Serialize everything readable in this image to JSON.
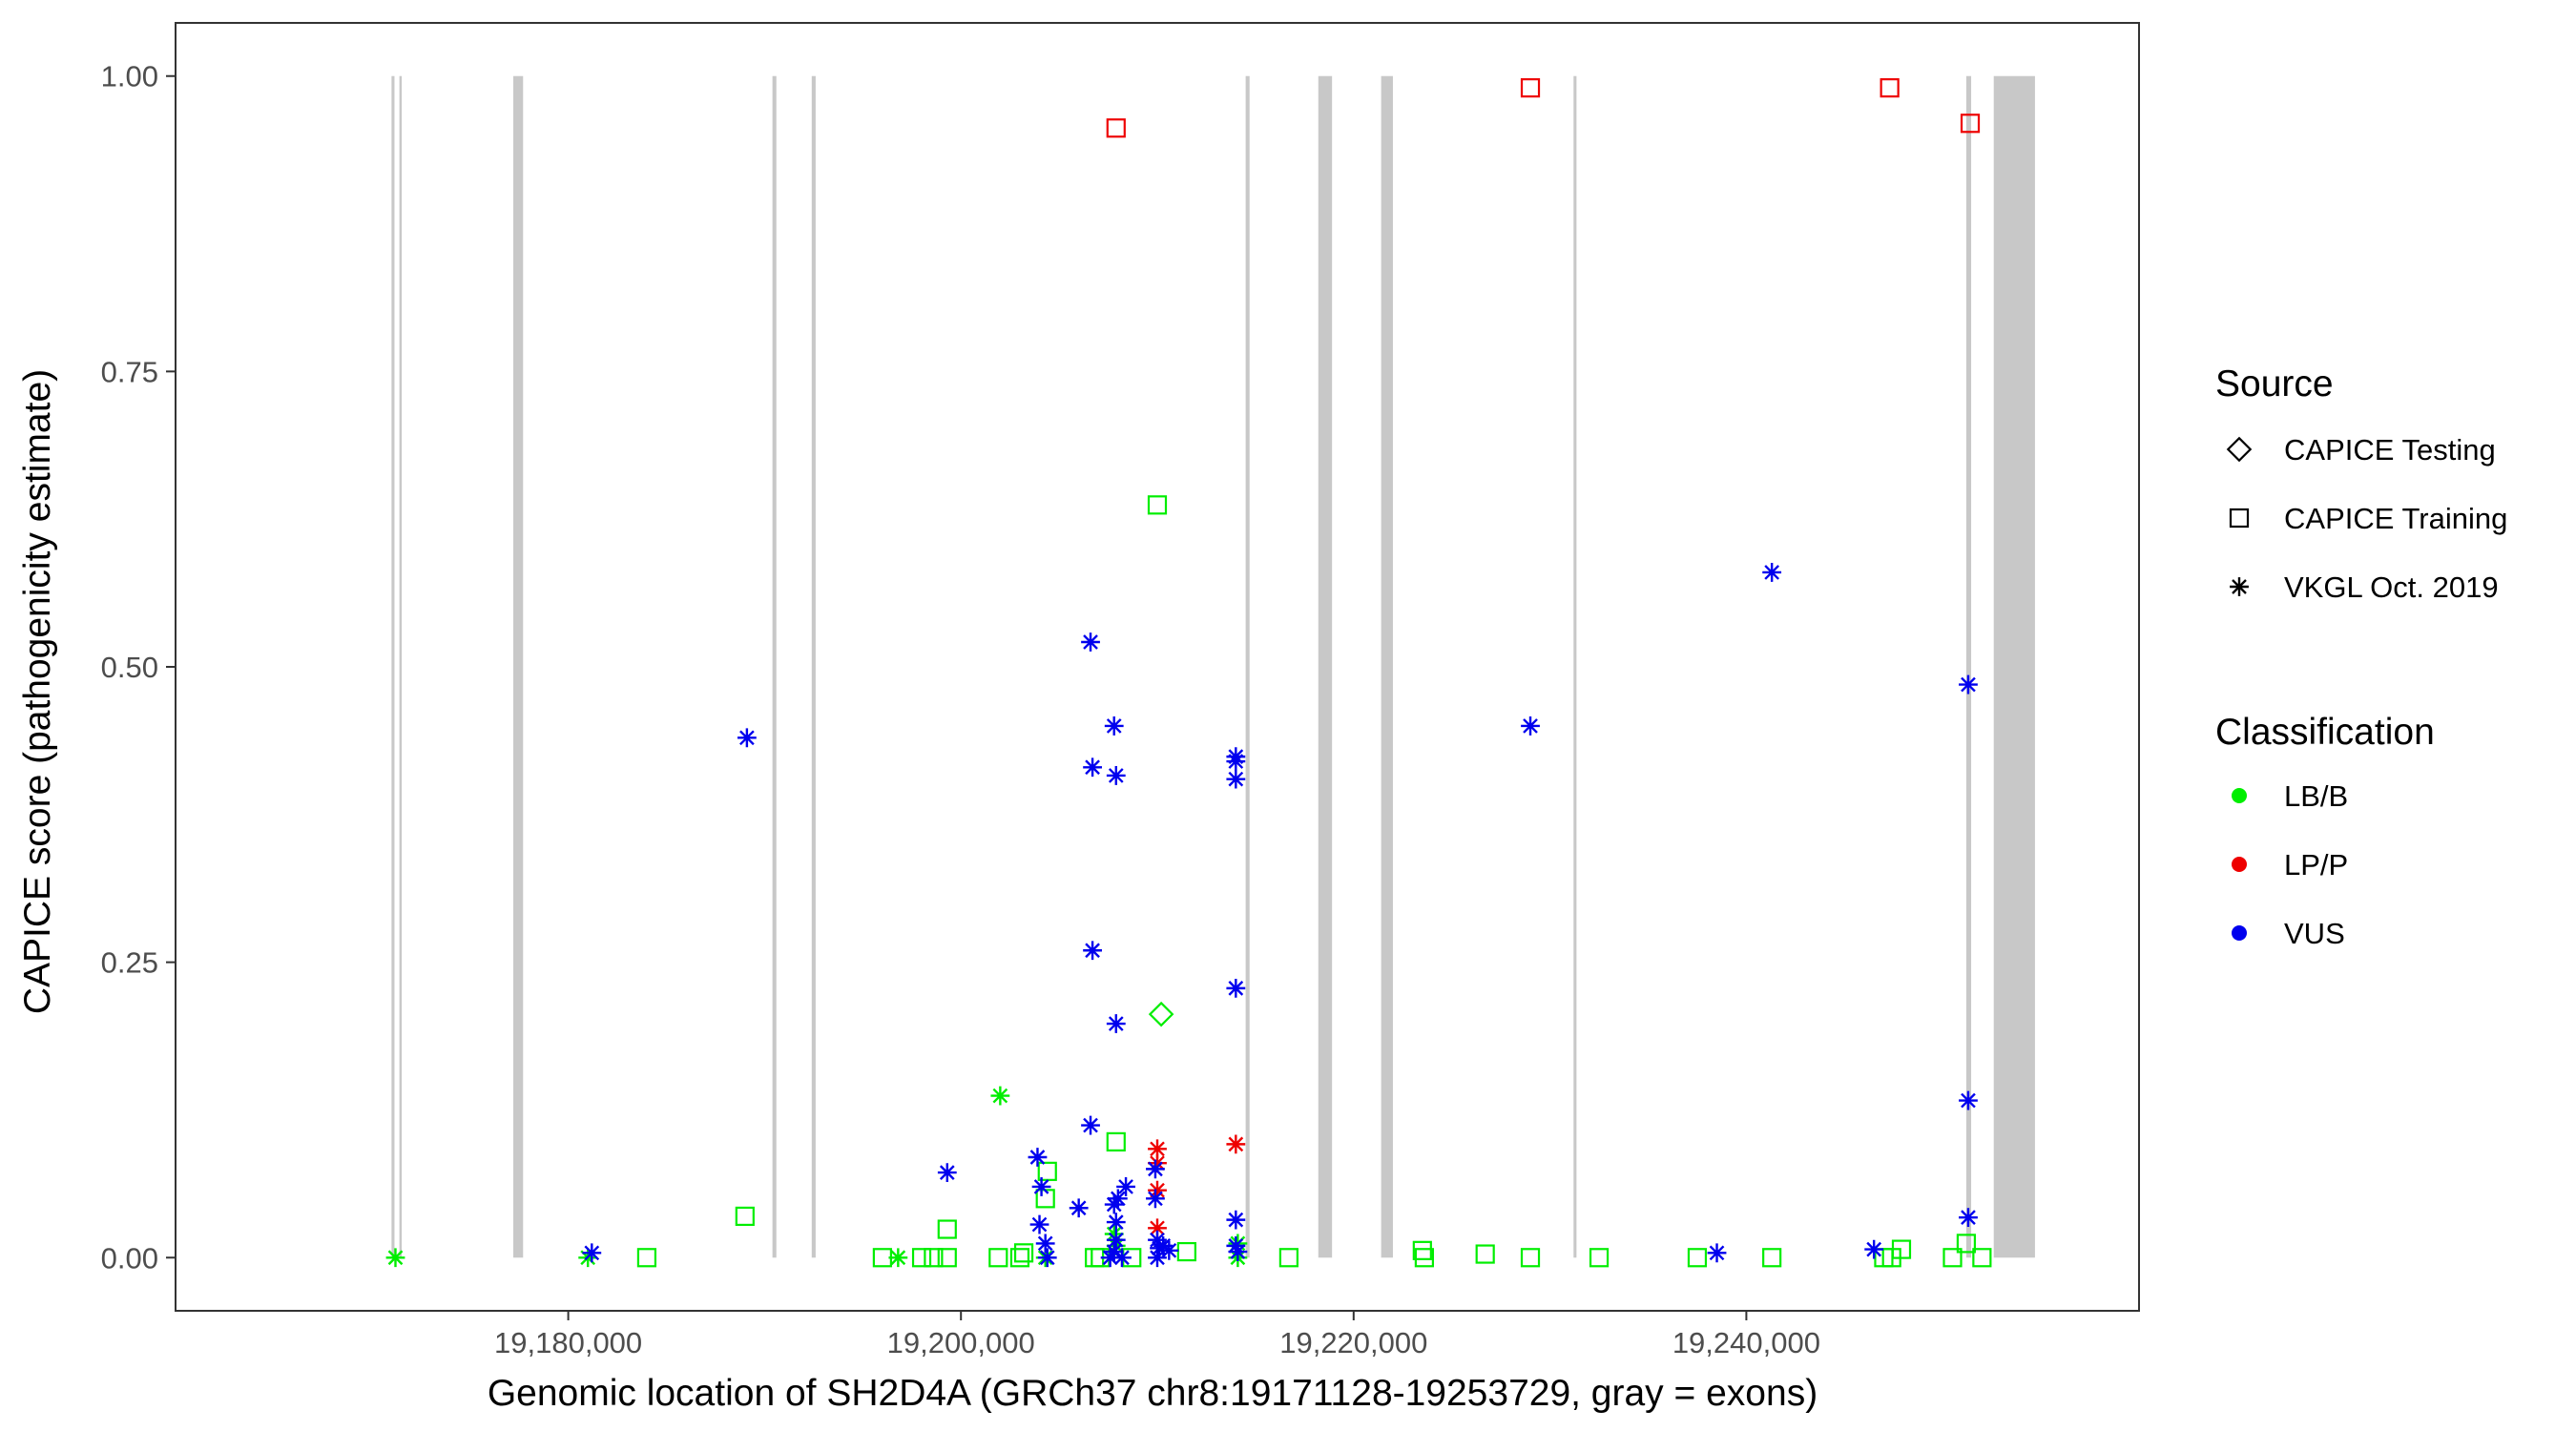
{
  "chart_data": {
    "type": "scatter",
    "title": "",
    "xlabel": "Genomic location of SH2D4A (GRCh37 chr8:19171128-19253729, gray = exons)",
    "ylabel": "CAPICE score (pathogenicity estimate)",
    "xlim": [
      19160000,
      19260000
    ],
    "ylim": [
      -0.045,
      1.045
    ],
    "x_ticks": [
      19180000,
      19200000,
      19220000,
      19240000
    ],
    "x_tick_labels": [
      "19,180,000",
      "19,200,000",
      "19,220,000",
      "19,240,000"
    ],
    "y_ticks": [
      0,
      0.25,
      0.5,
      0.75,
      1
    ],
    "y_tick_labels": [
      "0.00",
      "0.25",
      "0.50",
      "0.75",
      "1.00"
    ],
    "grid": false,
    "exons": [
      [
        19171000,
        19171150
      ],
      [
        19171400,
        19171500
      ],
      [
        19177200,
        19177700
      ],
      [
        19190400,
        19190600
      ],
      [
        19192400,
        19192600
      ],
      [
        19214500,
        19214700
      ],
      [
        19218200,
        19218900
      ],
      [
        19221400,
        19222000
      ],
      [
        19231200,
        19231350
      ],
      [
        19251200,
        19251450
      ],
      [
        19252600,
        19254700
      ]
    ],
    "legend": {
      "placement": "right",
      "source": {
        "title": "Source",
        "items": [
          {
            "label": "CAPICE Testing",
            "shape": "diamond"
          },
          {
            "label": "CAPICE Training",
            "shape": "square"
          },
          {
            "label": "VKGL Oct. 2019",
            "shape": "asterisk"
          }
        ]
      },
      "classification": {
        "title": "Classification",
        "items": [
          {
            "label": "LB/B",
            "color": "#00ee00"
          },
          {
            "label": "LP/P",
            "color": "#ee0000"
          },
          {
            "label": "VUS",
            "color": "#0000ee"
          }
        ]
      }
    },
    "series": [
      {
        "classification": "LP/P",
        "source": "CAPICE Training",
        "points": [
          [
            19207900,
            0.956
          ],
          [
            19229000,
            0.99
          ],
          [
            19247300,
            0.99
          ],
          [
            19251400,
            0.96
          ]
        ]
      },
      {
        "classification": "LP/P",
        "source": "VKGL Oct. 2019",
        "points": [
          [
            19210000,
            0.092
          ],
          [
            19210000,
            0.08
          ],
          [
            19210000,
            0.057
          ],
          [
            19210000,
            0.025
          ],
          [
            19214000,
            0.096
          ]
        ]
      },
      {
        "classification": "LB/B",
        "source": "CAPICE Testing",
        "points": [
          [
            19210200,
            0.206
          ]
        ]
      },
      {
        "classification": "LB/B",
        "source": "CAPICE Training",
        "points": [
          [
            19210000,
            0.637
          ],
          [
            19207900,
            0.098
          ],
          [
            19189000,
            0.035
          ],
          [
            19199300,
            0.024
          ],
          [
            19204400,
            0.073
          ],
          [
            19204300,
            0.05
          ],
          [
            19184000,
            0
          ],
          [
            19196000,
            0
          ],
          [
            19198000,
            0
          ],
          [
            19198600,
            0
          ],
          [
            19199300,
            0
          ],
          [
            19201900,
            0
          ],
          [
            19203000,
            0
          ],
          [
            19203200,
            0.004
          ],
          [
            19206800,
            0
          ],
          [
            19207100,
            0
          ],
          [
            19208700,
            0
          ],
          [
            19211500,
            0.005
          ],
          [
            19216700,
            0
          ],
          [
            19223500,
            0.006
          ],
          [
            19223600,
            0
          ],
          [
            19226700,
            0.003
          ],
          [
            19229000,
            0
          ],
          [
            19232500,
            0
          ],
          [
            19237500,
            0
          ],
          [
            19241300,
            0
          ],
          [
            19247000,
            0
          ],
          [
            19247400,
            0
          ],
          [
            19247900,
            0.007
          ],
          [
            19250500,
            0
          ],
          [
            19251200,
            0.012
          ],
          [
            19252000,
            0
          ]
        ]
      },
      {
        "classification": "LB/B",
        "source": "VKGL Oct. 2019",
        "points": [
          [
            19171200,
            0
          ],
          [
            19181000,
            0
          ],
          [
            19196800,
            0
          ],
          [
            19202000,
            0.137
          ],
          [
            19204300,
            0
          ],
          [
            19207800,
            0.02
          ],
          [
            19207900,
            0.01
          ],
          [
            19214100,
            0.012
          ],
          [
            19214100,
            0
          ]
        ]
      },
      {
        "classification": "VUS",
        "source": "VKGL Oct. 2019",
        "points": [
          [
            19181200,
            0.004
          ],
          [
            19189100,
            0.44
          ],
          [
            19199300,
            0.072
          ],
          [
            19203900,
            0.085
          ],
          [
            19204100,
            0.06
          ],
          [
            19204000,
            0.028
          ],
          [
            19204300,
            0.012
          ],
          [
            19204400,
            0
          ],
          [
            19206000,
            0.042
          ],
          [
            19206600,
            0.521
          ],
          [
            19206700,
            0.415
          ],
          [
            19206700,
            0.26
          ],
          [
            19206600,
            0.112
          ],
          [
            19207800,
            0.45
          ],
          [
            19207900,
            0.408
          ],
          [
            19207900,
            0.198
          ],
          [
            19207800,
            0.045
          ],
          [
            19207900,
            0.03
          ],
          [
            19207900,
            0.015
          ],
          [
            19207800,
            0.005
          ],
          [
            19207600,
            0
          ],
          [
            19208200,
            0
          ],
          [
            19208400,
            0.06
          ],
          [
            19208000,
            0.05
          ],
          [
            19209900,
            0.075
          ],
          [
            19209900,
            0.05
          ],
          [
            19210000,
            0.015
          ],
          [
            19210100,
            0.008
          ],
          [
            19210000,
            0
          ],
          [
            19210300,
            0.01
          ],
          [
            19210600,
            0.006
          ],
          [
            19214000,
            0.424
          ],
          [
            19214000,
            0.42
          ],
          [
            19214000,
            0.405
          ],
          [
            19214000,
            0.228
          ],
          [
            19214000,
            0.032
          ],
          [
            19214000,
            0.01
          ],
          [
            19214100,
            0.005
          ],
          [
            19229000,
            0.45
          ],
          [
            19238500,
            0.004
          ],
          [
            19241300,
            0.58
          ],
          [
            19246500,
            0.007
          ],
          [
            19251300,
            0.485
          ],
          [
            19251300,
            0.133
          ],
          [
            19251300,
            0.034
          ]
        ]
      }
    ]
  }
}
